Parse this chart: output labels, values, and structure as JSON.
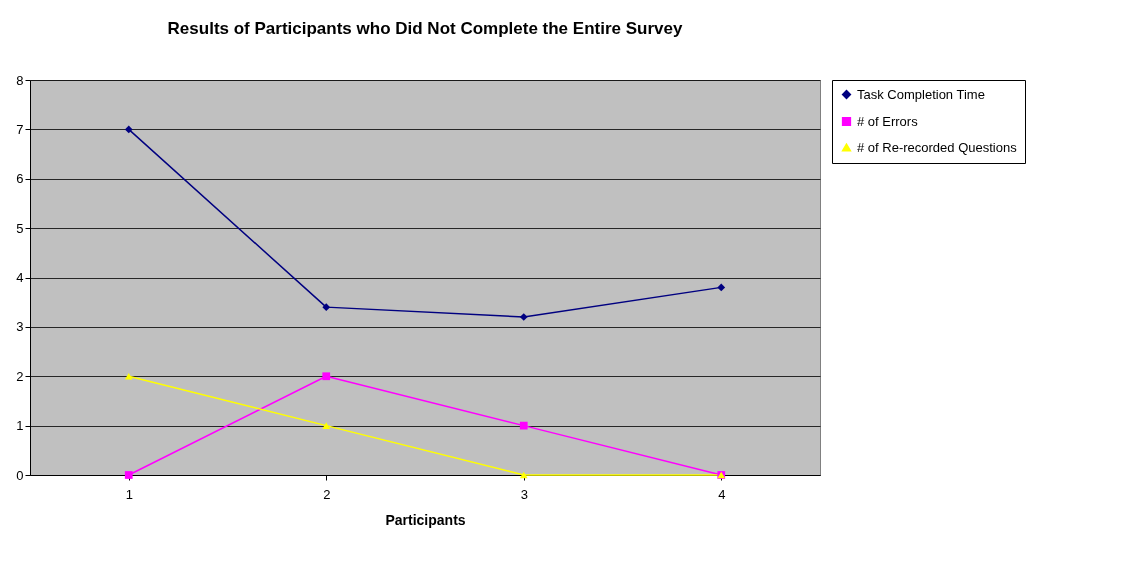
{
  "chart_data": {
    "type": "line",
    "title": "Results of Participants who Did Not Complete the Entire Survey",
    "xlabel": "Participants",
    "categories": [
      "1",
      "2",
      "3",
      "4"
    ],
    "series": [
      {
        "name": "Task Completion Time",
        "color": "#000080",
        "marker": "diamond",
        "values": [
          7,
          3.4,
          3.2,
          3.8
        ]
      },
      {
        "name": "# of Errors",
        "color": "#ff00ff",
        "marker": "square",
        "values": [
          0,
          2,
          1,
          0
        ]
      },
      {
        "name": "# of Re-recorded Questions",
        "color": "#ffff00",
        "marker": "triangle",
        "values": [
          2,
          1,
          0,
          0
        ]
      }
    ],
    "ylim": [
      0,
      8
    ],
    "yticks": [
      0,
      1,
      2,
      3,
      4,
      5,
      6,
      7,
      8
    ],
    "grid": "y",
    "legend": "right",
    "line_style": "solid"
  }
}
